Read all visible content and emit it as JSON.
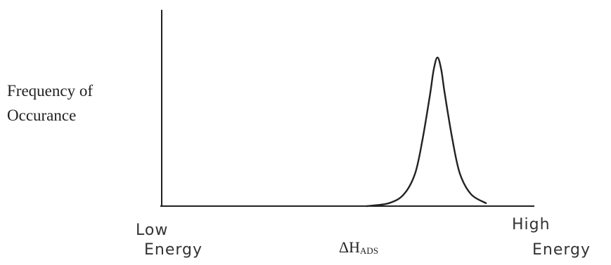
{
  "chart_data": {
    "type": "line",
    "title": "",
    "ylabel": "Frequency of\nOccurance",
    "x_low_label": [
      "Low",
      "Energy"
    ],
    "x_high_label": [
      "High",
      "Energy"
    ],
    "x_marker_label": {
      "main": "ΔH",
      "sub": "ADS"
    },
    "grid": false,
    "legend": "none",
    "axis_ticks": false,
    "xlim": [
      0,
      1
    ],
    "ylim": [
      0,
      1
    ],
    "series": [
      {
        "x": [
          0.0,
          0.55,
          0.61,
          0.65,
          0.68,
          0.7,
          0.72,
          0.73,
          0.74,
          0.75,
          0.76,
          0.78,
          0.8,
          0.83,
          0.87,
          1.0
        ],
        "values": [
          0,
          0,
          0.02,
          0.08,
          0.22,
          0.45,
          0.75,
          0.92,
          1.0,
          0.92,
          0.75,
          0.45,
          0.22,
          0.08,
          0.02,
          0
        ]
      }
    ]
  }
}
